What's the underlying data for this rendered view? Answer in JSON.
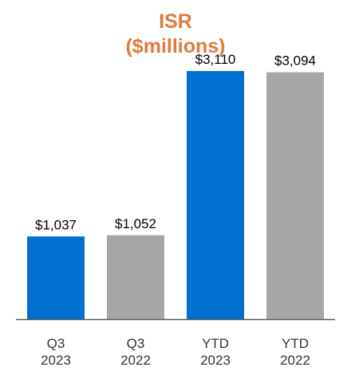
{
  "chart_data": {
    "type": "bar",
    "title": "ISR",
    "subtitle": "($millions)",
    "categories": [
      [
        "Q3",
        "2023"
      ],
      [
        "Q3",
        "2022"
      ],
      [
        "YTD",
        "2023"
      ],
      [
        "YTD",
        "2022"
      ]
    ],
    "values": [
      1037,
      1052,
      3110,
      3094
    ],
    "value_labels": [
      "$1,037",
      "$1,052",
      "$3,110",
      "$3,094"
    ],
    "bar_colors": [
      "#0070d0",
      "#a6a6a6",
      "#0070d0",
      "#a6a6a6"
    ],
    "ylim": [
      0,
      3400
    ],
    "grid": false,
    "xlabel": "",
    "ylabel": ""
  },
  "colors": {
    "title": "#e07b39",
    "axis": "#595959"
  }
}
